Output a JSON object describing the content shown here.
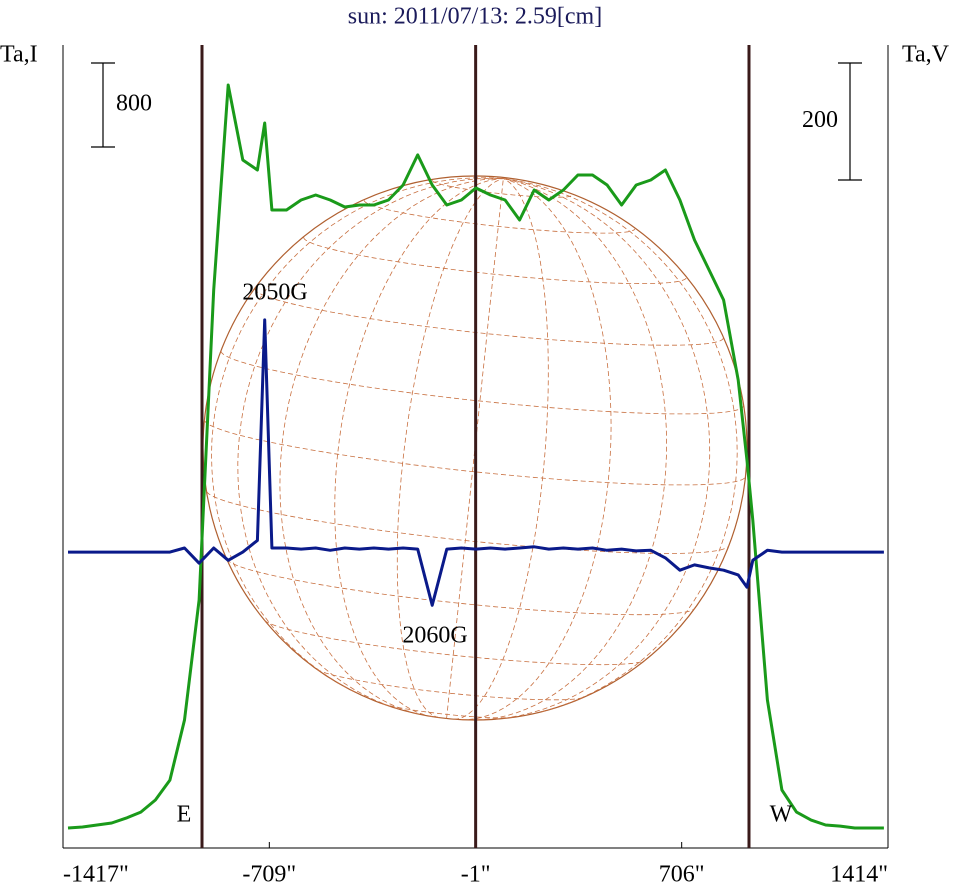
{
  "chart_data": {
    "type": "line",
    "title": "sun: 2011/07/13: 2.59[cm]",
    "y_label": "Ta,I",
    "y2_label": "Ta,V",
    "x": [
      -1400,
      -1350,
      -1300,
      -1250,
      -1200,
      -1150,
      -1100,
      -1050,
      -1000,
      -950,
      -900,
      -850,
      -800,
      -750,
      -725,
      -700,
      -650,
      -600,
      -550,
      -500,
      -450,
      -400,
      -350,
      -300,
      -250,
      -200,
      -150,
      -100,
      -50,
      0,
      50,
      100,
      150,
      200,
      250,
      300,
      350,
      400,
      450,
      500,
      550,
      600,
      650,
      700,
      750,
      800,
      850,
      900,
      930,
      950,
      1000,
      1050,
      1100,
      1150,
      1200,
      1250,
      1300,
      1350,
      1400
    ],
    "series": [
      {
        "color": "#1a9a1a",
        "axis": "y",
        "values": [
          0,
          10,
          29,
          48,
          95,
          152,
          267,
          457,
          1029,
          2171,
          5124,
          7076,
          6362,
          6267,
          6714,
          5886,
          5886,
          5981,
          6029,
          5981,
          5914,
          5933,
          5933,
          5981,
          6124,
          6410,
          6124,
          5933,
          5981,
          6095,
          6029,
          5981,
          5790,
          6076,
          5981,
          6076,
          6219,
          6219,
          6124,
          5933,
          6124,
          6171,
          6267,
          5981,
          5600,
          5314,
          5029,
          4267,
          3500,
          2933,
          1219,
          362,
          152,
          76,
          29,
          19,
          0,
          0,
          0
        ]
      },
      {
        "color": "#0a1a8a",
        "axis": "y2",
        "values": [
          0,
          0,
          0,
          0,
          0,
          0,
          0,
          0,
          7,
          -19,
          7,
          -14,
          0,
          20,
          397,
          7,
          7,
          5,
          7,
          3,
          7,
          5,
          7,
          5,
          7,
          5,
          -91,
          5,
          7,
          5,
          7,
          5,
          7,
          9,
          5,
          7,
          5,
          7,
          3,
          5,
          2,
          3,
          -10,
          -31,
          -22,
          -27,
          -31,
          -39,
          -60,
          -14,
          3,
          0,
          0,
          0,
          0,
          0,
          0,
          0,
          0
        ]
      }
    ],
    "xlim": [
      -1417,
      1414
    ],
    "xticks": [
      {
        "value": -1417,
        "label": "-1417\""
      },
      {
        "value": -709,
        "label": "-709\""
      },
      {
        "value": -1,
        "label": "-1\""
      },
      {
        "value": 706,
        "label": "706\""
      },
      {
        "value": 1414,
        "label": "1414\""
      }
    ],
    "ylim": [
      -190,
      7457
    ],
    "y2lim": [
      -506,
      867
    ],
    "scale_bars": [
      {
        "axis": "y",
        "value": 800
      },
      {
        "axis": "y2",
        "value": 200
      }
    ],
    "vlines": [
      -940,
      -1,
      937
    ],
    "annotations": [
      "2050G",
      "2060G",
      "E",
      "W"
    ]
  }
}
